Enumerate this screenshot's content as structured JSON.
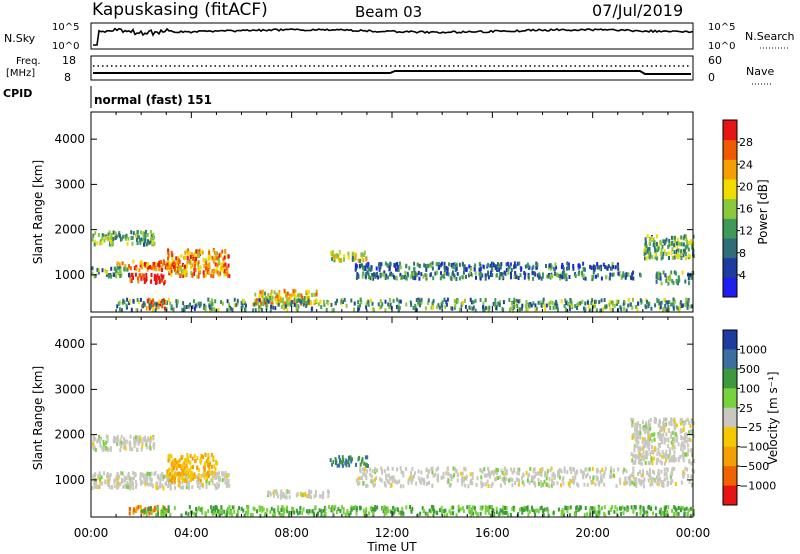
{
  "header": {
    "station": "Kapuskasing (fitACF)",
    "beam": "Beam 03",
    "date": "07/Jul/2019"
  },
  "params": {
    "nsky_label": "N.Sky",
    "nsearch_label": "N.Search",
    "noise_tick_top": "10^5",
    "noise_tick_bottom": "10^0",
    "freq_label": "Freq.",
    "freq_unit": "[MHz]",
    "freq_tick_top": "18",
    "freq_tick_bottom": "8",
    "nave_label": "Nave",
    "nave_tick_top": "60",
    "nave_tick_bottom": "0",
    "cpid_label": "CPID",
    "cpid_value": "normal (fast) 151"
  },
  "colors": {
    "power": [
      "#1e1ef0",
      "#1e3ca0",
      "#2f6e78",
      "#3f9a5a",
      "#8cc83c",
      "#f0dc00",
      "#f5a000",
      "#f05a00",
      "#e61414"
    ],
    "velocity": [
      "#e61414",
      "#f06400",
      "#f5a000",
      "#f5c800",
      "#c8c8c0",
      "#78d23c",
      "#3c9a3c",
      "#3c6ea0",
      "#1e3ca0"
    ],
    "velocity_mid": "#c8c8c0"
  },
  "chart_data": [
    {
      "type": "heatmap",
      "ylabel": "Slant Range [km]",
      "xlabel": "Time UT",
      "x_ticks": [
        "00:00",
        "04:00",
        "08:00",
        "12:00",
        "16:00",
        "20:00",
        "00:00"
      ],
      "x_range_hours": [
        0,
        24
      ],
      "y_ticks": [
        1000,
        2000,
        3000,
        4000
      ],
      "ylim": [
        180,
        4600
      ],
      "colorbar": {
        "label": "Power [dB]",
        "ticks": [
          4,
          8,
          12,
          16,
          20,
          24,
          28
        ],
        "range": [
          0,
          32
        ]
      },
      "regions": [
        {
          "t0": 1.0,
          "t1": 3.5,
          "r0": 1150,
          "r1": 1350,
          "value": 26
        },
        {
          "t0": 1.5,
          "t1": 3.0,
          "r0": 850,
          "r1": 1050,
          "value": 30
        },
        {
          "t0": 3.0,
          "t1": 5.5,
          "r0": 1000,
          "r1": 1600,
          "value": 24
        },
        {
          "t0": 2.0,
          "t1": 3.0,
          "r0": 300,
          "r1": 500,
          "value": 30
        },
        {
          "t0": 0.0,
          "t1": 2.5,
          "r0": 1700,
          "r1": 2000,
          "value": 14
        },
        {
          "t0": 0.0,
          "t1": 1.5,
          "r0": 1000,
          "r1": 1200,
          "value": 12
        },
        {
          "t0": 6.5,
          "t1": 9.0,
          "r0": 400,
          "r1": 700,
          "value": 20
        },
        {
          "t0": 9.5,
          "t1": 11.0,
          "r0": 1350,
          "r1": 1550,
          "value": 16
        },
        {
          "t0": 10.5,
          "t1": 21.0,
          "r0": 1150,
          "r1": 1300,
          "value": 8
        },
        {
          "t0": 10.5,
          "t1": 22.0,
          "r0": 950,
          "r1": 1100,
          "value": 10
        },
        {
          "t0": 22.0,
          "t1": 24.0,
          "r0": 1400,
          "r1": 1900,
          "value": 14
        },
        {
          "t0": 22.5,
          "t1": 24.0,
          "r0": 850,
          "r1": 1100,
          "value": 12
        },
        {
          "t0": 1.0,
          "t1": 24.0,
          "r0": 250,
          "r1": 500,
          "value": 12
        }
      ]
    },
    {
      "type": "heatmap",
      "ylabel": "Slant Range [km]",
      "xlabel": "Time UT",
      "x_ticks": [
        "00:00",
        "04:00",
        "08:00",
        "12:00",
        "16:00",
        "20:00",
        "00:00"
      ],
      "x_range_hours": [
        0,
        24
      ],
      "y_ticks": [
        1000,
        2000,
        3000,
        4000
      ],
      "ylim": [
        180,
        4600
      ],
      "colorbar": {
        "label": "Velocity [m s⁻¹]",
        "ticks": [
          -1000,
          -500,
          -100,
          -25,
          25,
          100,
          500,
          1000
        ],
        "tick_labels": [
          "1000",
          "500",
          "100",
          "25",
          "−25",
          "−100",
          "−500",
          "−1000"
        ]
      },
      "regions": [
        {
          "t0": 0.0,
          "t1": 2.5,
          "r0": 1700,
          "r1": 2000,
          "value": 0
        },
        {
          "t0": 0.0,
          "t1": 5.5,
          "r0": 850,
          "r1": 1200,
          "value": 0
        },
        {
          "t0": 3.0,
          "t1": 5.0,
          "r0": 1000,
          "r1": 1600,
          "value": -100
        },
        {
          "t0": 1.5,
          "t1": 3.0,
          "r0": 300,
          "r1": 450,
          "value": -500
        },
        {
          "t0": 7.0,
          "t1": 9.5,
          "r0": 650,
          "r1": 800,
          "value": 0
        },
        {
          "t0": 9.5,
          "t1": 11.0,
          "r0": 1350,
          "r1": 1550,
          "value": 500
        },
        {
          "t0": 10.5,
          "t1": 24.0,
          "r0": 900,
          "r1": 1300,
          "value": 0
        },
        {
          "t0": 21.5,
          "t1": 24.0,
          "r0": 1400,
          "r1": 2400,
          "value": 0
        },
        {
          "t0": 2.0,
          "t1": 24.0,
          "r0": 250,
          "r1": 450,
          "value": 100
        }
      ]
    }
  ]
}
